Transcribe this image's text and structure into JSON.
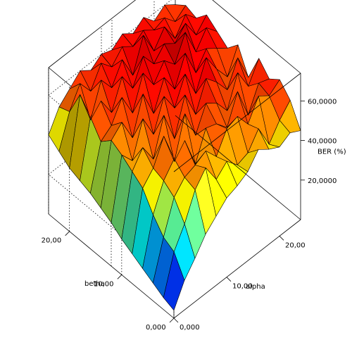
{
  "chart_data": {
    "type": "surface3d",
    "title": "",
    "x_axis": {
      "label": "alpha",
      "ticks": [
        "0,000",
        "10,00",
        "20,00"
      ],
      "tick_values": [
        0,
        10,
        20
      ],
      "range": [
        0,
        24
      ]
    },
    "y_axis": {
      "label": "betha",
      "ticks": [
        "0,000",
        "10,00",
        "20,00"
      ],
      "tick_values": [
        0,
        10,
        20
      ],
      "range": [
        0,
        24
      ]
    },
    "z_axis": {
      "label": "BER (%)",
      "ticks": [
        "20,0000",
        "40,0000",
        "60,0000"
      ],
      "tick_values": [
        20000,
        40000,
        60000
      ],
      "range": [
        0,
        74000
      ]
    },
    "alpha": [
      0,
      2,
      4,
      6,
      8,
      10,
      12,
      14,
      16,
      18,
      20,
      22,
      24
    ],
    "betha": [
      0,
      2,
      4,
      6,
      8,
      10,
      12,
      14,
      16,
      18,
      20,
      22,
      24
    ],
    "z": [
      [
        4000,
        15000,
        22000,
        30000,
        35000,
        40000,
        42000,
        45000,
        52000,
        48000,
        45000,
        48000,
        45000
      ],
      [
        6000,
        25000,
        35000,
        48000,
        55000,
        45000,
        50000,
        44000,
        46000,
        54000,
        42000,
        50000,
        56000
      ],
      [
        9000,
        28000,
        44000,
        50000,
        52000,
        55000,
        48000,
        58000,
        60000,
        52000,
        62000,
        58000,
        62000
      ],
      [
        12000,
        35000,
        48000,
        55000,
        60000,
        44000,
        58000,
        56000,
        50000,
        64000,
        48000,
        60000,
        58000
      ],
      [
        15000,
        44000,
        50000,
        62000,
        45000,
        65000,
        50000,
        62000,
        58000,
        50000,
        65000,
        54000,
        64000
      ],
      [
        18000,
        48000,
        56000,
        46000,
        64000,
        48000,
        66000,
        52000,
        66000,
        60000,
        52000,
        64000,
        50000
      ],
      [
        22000,
        52000,
        45000,
        62000,
        50000,
        65000,
        55000,
        68000,
        54000,
        68000,
        58000,
        50000,
        62000
      ],
      [
        25000,
        55000,
        60000,
        48000,
        66000,
        52000,
        66000,
        56000,
        70000,
        56000,
        64000,
        60000,
        56000
      ],
      [
        28000,
        50000,
        54000,
        64000,
        52000,
        68000,
        58000,
        66000,
        60000,
        72000,
        58000,
        66000,
        60000
      ],
      [
        30000,
        58000,
        62000,
        52000,
        66000,
        56000,
        68000,
        60000,
        66000,
        62000,
        68000,
        58000,
        64000
      ],
      [
        32000,
        65000,
        48000,
        64000,
        56000,
        66000,
        54000,
        70000,
        58000,
        66000,
        56000,
        64000,
        58000
      ],
      [
        36000,
        52000,
        62000,
        54000,
        64000,
        58000,
        64000,
        60000,
        64000,
        60000,
        62000,
        56000,
        60000
      ],
      [
        40000,
        50000,
        55000,
        60000,
        56000,
        60000,
        58000,
        62000,
        58000,
        62000,
        56000,
        60000,
        56000
      ]
    ],
    "colormap": [
      "#00007f",
      "#0000ff",
      "#007fff",
      "#00ffff",
      "#7fff7f",
      "#ffff00",
      "#ff7f00",
      "#ff0000",
      "#7f0000"
    ],
    "mesh_color": "#000000",
    "grid": true,
    "legend": "none"
  }
}
